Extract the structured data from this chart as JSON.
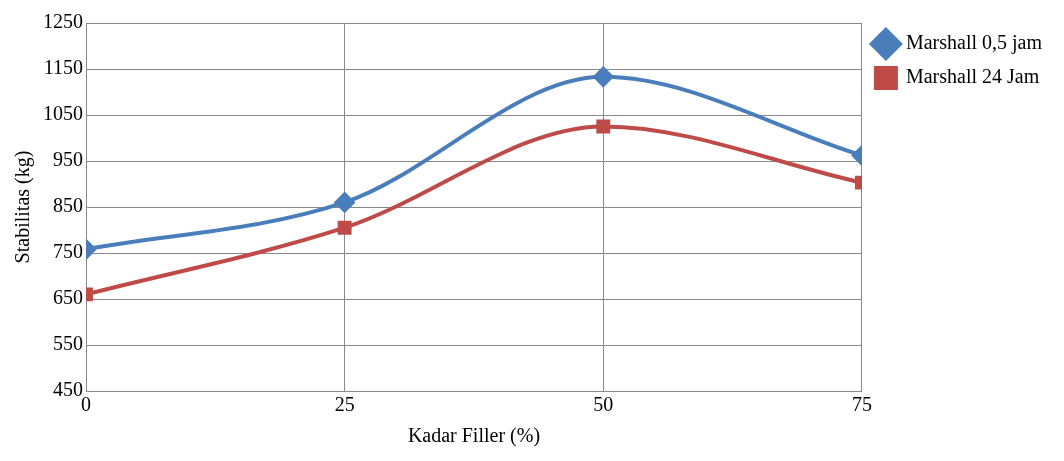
{
  "chart_data": {
    "type": "line",
    "xlabel": "Kadar Filler (%)",
    "ylabel": "Stabilitas (kg)",
    "x": [
      0,
      25,
      50,
      75
    ],
    "series": [
      {
        "name": "Marshall 0,5 jam",
        "color": "#4a7ebb",
        "values": [
          758,
          860,
          1133,
          962
        ],
        "marker": "diamond"
      },
      {
        "name": "Marshall 24 Jam",
        "color": "#be4b48",
        "values": [
          660,
          805,
          1025,
          903
        ],
        "marker": "square"
      }
    ],
    "xlim": [
      0,
      75
    ],
    "xticks": [
      0,
      25,
      50,
      75
    ],
    "ylim": [
      450,
      1250
    ],
    "yticks": [
      450,
      550,
      650,
      750,
      850,
      950,
      1050,
      1150,
      1250
    ],
    "grid": true,
    "legend": "right",
    "line_style": "solid"
  }
}
